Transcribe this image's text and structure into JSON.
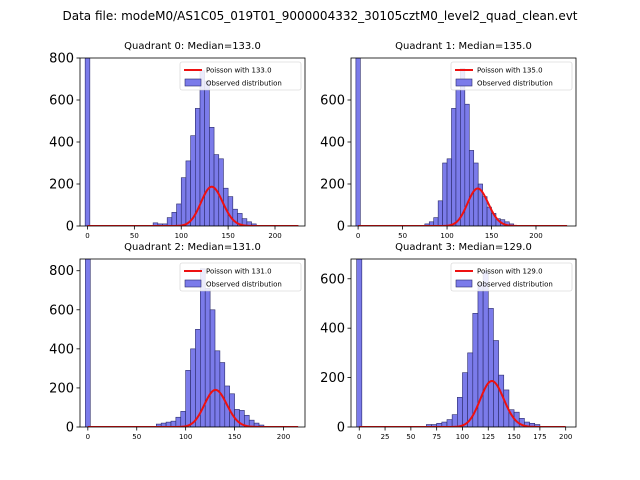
{
  "figure": {
    "title": "Data file: modeM0/AS1C05_019T01_9000004332_30105cztM0_level2_quad_clean.evt"
  },
  "chart_data": [
    {
      "type": "bar",
      "title": "Quadrant 0: Median=133.0",
      "xlim": [
        -8,
        232
      ],
      "ylim": [
        0,
        800
      ],
      "xticks": [
        0,
        50,
        100,
        150,
        200
      ],
      "yticks": [
        0,
        200,
        400,
        600,
        800
      ],
      "bin_width": 5,
      "spike": {
        "x": 0,
        "value": 800
      },
      "bins_start": 70,
      "values": [
        15,
        10,
        10,
        40,
        65,
        105,
        230,
        310,
        430,
        560,
        740,
        690,
        470,
        340,
        320,
        180,
        140,
        80,
        60,
        35,
        20,
        10
      ],
      "poisson_mean": 133.0,
      "poisson_scale": 5400,
      "poisson_range": [
        0,
        225
      ],
      "legend": {
        "line": "Poisson with 133.0",
        "bars": "Observed distribution"
      }
    },
    {
      "type": "bar",
      "title": "Quadrant 1: Median=135.0",
      "xlim": [
        -8,
        245
      ],
      "ylim": [
        0,
        800
      ],
      "xticks": [
        0,
        50,
        100,
        150,
        200
      ],
      "yticks": [
        0,
        200,
        400,
        600
      ],
      "bin_width": 5,
      "spike": {
        "x": 0,
        "value": 800
      },
      "bins_start": 75,
      "values": [
        10,
        20,
        40,
        120,
        300,
        320,
        560,
        650,
        750,
        580,
        360,
        300,
        200,
        140,
        90,
        60,
        35,
        30,
        20,
        10
      ],
      "poisson_mean": 135.0,
      "poisson_scale": 5200,
      "poisson_range": [
        0,
        235
      ],
      "legend": {
        "line": "Poisson with 135.0",
        "bars": "Observed distribution"
      }
    },
    {
      "type": "bar",
      "title": "Quadrant 2: Median=131.0",
      "xlim": [
        -8,
        222
      ],
      "ylim": [
        0,
        860
      ],
      "xticks": [
        0,
        50,
        100,
        150,
        200
      ],
      "yticks": [
        0,
        200,
        400,
        600,
        800
      ],
      "bin_width": 5,
      "spike": {
        "x": 0,
        "value": 860
      },
      "bins_start": 70,
      "values": [
        15,
        20,
        25,
        30,
        50,
        80,
        290,
        400,
        500,
        810,
        710,
        600,
        390,
        330,
        210,
        170,
        90,
        85,
        60,
        35,
        20,
        10
      ],
      "poisson_mean": 131.0,
      "poisson_scale": 5450,
      "poisson_range": [
        0,
        215
      ],
      "legend": {
        "line": "Poisson with 131.0",
        "bars": "Observed distribution"
      }
    },
    {
      "type": "bar",
      "title": "Quadrant 3: Median=129.0",
      "xlim": [
        -8,
        210
      ],
      "ylim": [
        0,
        680
      ],
      "xticks": [
        0,
        25,
        50,
        75,
        100,
        125,
        150,
        175,
        200
      ],
      "yticks": [
        0,
        200,
        400,
        600
      ],
      "bin_width": 5,
      "spike": {
        "x": 0,
        "value": 680
      },
      "bins_start": 65,
      "values": [
        10,
        10,
        15,
        20,
        30,
        50,
        120,
        220,
        300,
        460,
        580,
        630,
        480,
        350,
        210,
        150,
        70,
        60,
        35,
        20,
        15,
        10
      ],
      "poisson_mean": 129.0,
      "poisson_scale": 5300,
      "poisson_range": [
        0,
        200
      ],
      "legend": {
        "line": "Poisson with 129.0",
        "bars": "Observed distribution"
      }
    }
  ],
  "colors": {
    "bar_fill": "#7b7bea",
    "bar_edge": "#2a2a6a",
    "line": "#ee1111",
    "axis": "#000000"
  }
}
